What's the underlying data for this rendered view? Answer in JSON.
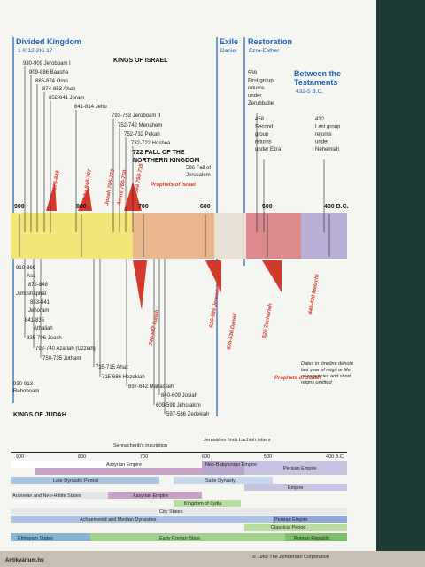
{
  "header": {
    "divided": "Divided Kingdom",
    "divided_ref": "1 K 12-2Ki 17",
    "exile": "Exile",
    "exile_ref": "Daniel",
    "restoration": "Restoration",
    "restoration_ref": "Ezra-Esther",
    "between": [
      "Between the",
      "Testaments"
    ],
    "between_ref": "432-5 B.C."
  },
  "israel": {
    "title": "KINGS OF ISRAEL",
    "kings": [
      "930-909 Jeroboam I",
      "909-886 Baasha",
      "885-874 Omri",
      "874-853 Ahab",
      "852-841 Joram",
      "841-814 Jehu",
      "793-753 Jeroboam II",
      "752-742 Menahem",
      "752-732 Pekah",
      "732-722 Hoshea"
    ],
    "fall_north": [
      "722 FALL OF THE",
      "NORTHERN KINGDOM"
    ],
    "fall_jerusalem": [
      "586 Fall of",
      "Jerusalem"
    ],
    "prophets": [
      "Elijah 875-848",
      "Elisha 848-797",
      "Jonah 785-775",
      "Amos 760-750",
      "Hosea 750-715"
    ],
    "prophets_label": "Prophets of Israel"
  },
  "returns": [
    [
      "538",
      "First group",
      "returns",
      "under",
      "Zerubbabel"
    ],
    [
      "458",
      "Second",
      "group",
      "returns",
      "under Ezra"
    ],
    [
      "432",
      "Last group",
      "returns",
      "under",
      "Nehemiah"
    ]
  ],
  "scale": [
    "900",
    "800",
    "700",
    "600",
    "500",
    "400 B.C."
  ],
  "judah": {
    "title": "KINGS OF JUDAH",
    "kings": [
      "910-869",
      "Asa",
      "872-848",
      "Jehoshaphat",
      "853-841",
      "Jehoram",
      "841-835",
      "Athaliah",
      "835-796 Joash",
      "792-740 Azariah (Uzziah)",
      "750-735 Jotham",
      "735-715 Ahaz",
      "715-686 Hezekiah",
      "697-642 Manasseh",
      "640-609 Josiah",
      "609-598 Jehoiakim",
      "597-586 Zedekiah"
    ],
    "rehoboam": [
      "930-913",
      "Rehoboam"
    ],
    "prophets": [
      "740-687 Isaiah",
      "626-585 Jeremiah",
      "605-536 Daniel",
      "520 Zechariah",
      "440-430 Malachi"
    ],
    "prophets_label": "Prophets of Judah",
    "notes": [
      "Dates in timeline denote",
      "last year of reign or life",
      "co-regencies and short",
      "reigns omitted"
    ]
  },
  "world": {
    "marks": [
      "Sennacherib's inscription",
      "Jerusalem finds Lachish letters"
    ],
    "bands": [
      "Assyrian Empire",
      "Neo-Babylonian Empire",
      "Persian Empire",
      "Late Dynastic Period",
      "Saite Dynasty",
      "Empire",
      "Aramean and Neo-Hittite States",
      "Assyrian Empire",
      "Kingdom of Lydia",
      "City States",
      "Achaemenid and Median Dynasties",
      "Persian Empire",
      "Classical Period",
      "Ethiopian States",
      "Early Roman State",
      "Roman Republic"
    ]
  },
  "copyright": "© 1985 The Zondervan Corporation",
  "watermark": "Antikvárium.hu"
}
